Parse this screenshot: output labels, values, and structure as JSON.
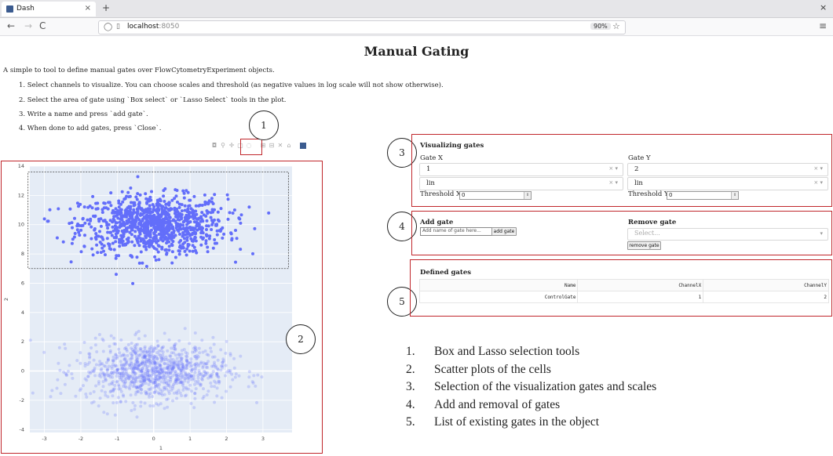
{
  "browser": {
    "tab_title": "Dash",
    "tab_close": "×",
    "new_tab": "+",
    "window_close": "×",
    "nav": {
      "back": "←",
      "forward": "→",
      "reload": "C"
    },
    "url_host": "localhost",
    "url_port": ":8050",
    "zoom": "90%",
    "star": "☆",
    "menu": "≡"
  },
  "page": {
    "title": "Manual Gating",
    "intro": "A simple to tool to define manual gates over FlowCytometryExperiment objects.",
    "steps": [
      "1. Select channels to visualize. You can choose scales and threshold (as negative values in log scale will not show otherwise).",
      "2. Select the area of gate using `Box select` or `Lasso Select` tools in the plot.",
      "3. Write a name and press `add gate`.",
      "4. When done to add gates, press `Close`."
    ]
  },
  "modebar": {
    "icons": [
      "camera-icon",
      "zoom-icon",
      "pan-icon",
      "box-select-icon",
      "lasso-select-icon",
      "zoom-in-icon",
      "zoom-out-icon",
      "autoscale-icon",
      "reset-axes-icon",
      "plotly-logo-icon"
    ]
  },
  "callouts": [
    "1",
    "2",
    "3",
    "4",
    "5"
  ],
  "chart_data": {
    "type": "scatter",
    "xlabel": "1",
    "ylabel": "2",
    "xlim": [
      -3.4,
      3.8
    ],
    "ylim": [
      -4.2,
      14
    ],
    "xticks": [
      "-3",
      "-2",
      "-1",
      "0",
      "1",
      "2",
      "3"
    ],
    "yticks": [
      "-4",
      "-2",
      "0",
      "2",
      "4",
      "6",
      "8",
      "10",
      "12",
      "14"
    ],
    "grid": true,
    "series": [
      {
        "color": "#636efa",
        "opacity": 1.0,
        "distribution": {
          "x_mean": 0.0,
          "x_sd": 1.0,
          "y_mean": 10.0,
          "y_sd": 1.0,
          "n": 1000
        }
      },
      {
        "color": "#636efa",
        "opacity": 0.25,
        "distribution": {
          "x_mean": 0.0,
          "x_sd": 1.0,
          "y_mean": 0.0,
          "y_sd": 1.0,
          "n": 1000
        }
      }
    ],
    "selection_box": {
      "x": [
        -3.45,
        3.7
      ],
      "y": [
        7.0,
        13.6
      ]
    }
  },
  "visualizing": {
    "title": "Visualizing gates",
    "gate_x_label": "Gate X",
    "gate_y_label": "Gate Y",
    "gate_x_value": "1",
    "gate_y_value": "2",
    "scale_x_value": "lin",
    "scale_y_value": "lin",
    "dropdown_controls": "× ▾",
    "threshold_x_label": "Threshold X",
    "threshold_y_label": "Threshold Y",
    "threshold_x_value": "0",
    "threshold_y_value": "0",
    "spinner": "⇕"
  },
  "add_gate": {
    "title": "Add gate",
    "placeholder": "Add name of gate here...",
    "button": "add gate"
  },
  "remove_gate": {
    "title": "Remove gate",
    "placeholder": "Select...",
    "arrow": "▾",
    "button": "remove gate"
  },
  "defined_gates": {
    "title": "Defined gates",
    "headers": [
      "Name",
      "ChannelX",
      "ChannelY"
    ],
    "rows": [
      [
        "ControlGate",
        "1",
        "2"
      ]
    ]
  },
  "legend": [
    {
      "num": "1.",
      "text": "Box and Lasso selection tools"
    },
    {
      "num": "2.",
      "text": "Scatter plots of the cells"
    },
    {
      "num": "3.",
      "text": "Selection of the visualization gates and scales"
    },
    {
      "num": "4.",
      "text": "Add and removal of gates"
    },
    {
      "num": "5.",
      "text": "List of existing gates in the object"
    }
  ]
}
